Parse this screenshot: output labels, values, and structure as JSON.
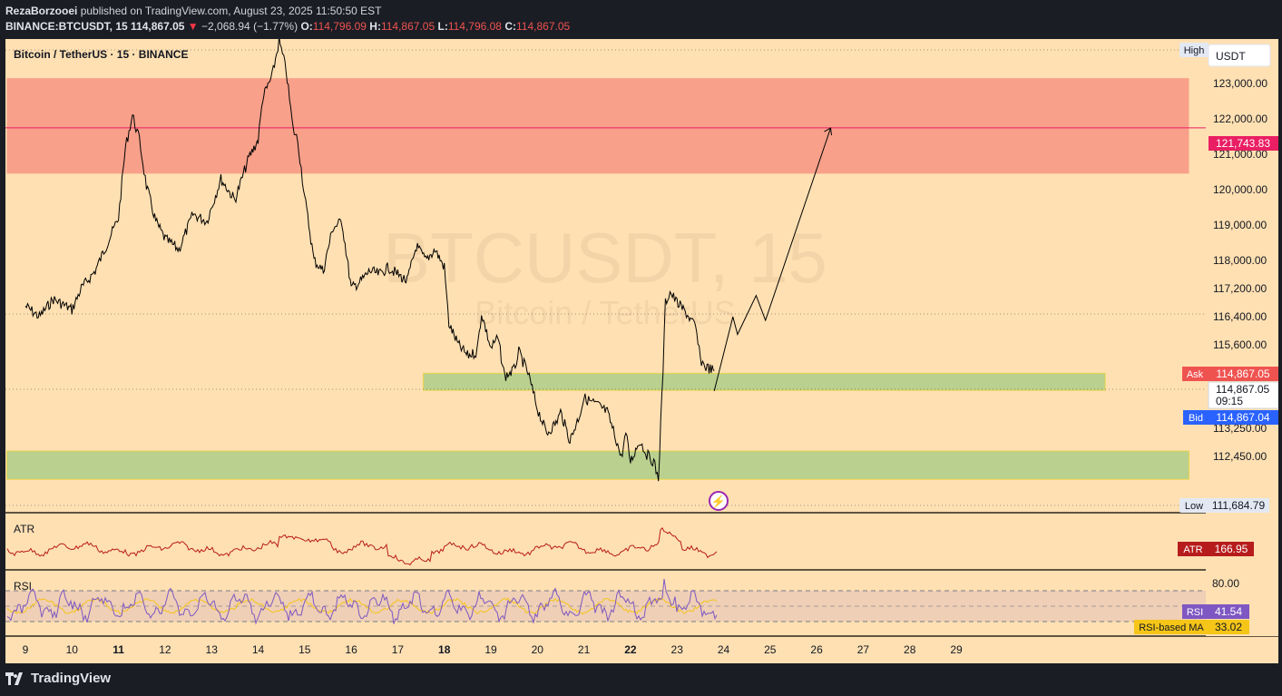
{
  "header": {
    "author": "RezaBorzooei",
    "published_text": "published on TradingView.com, August 23, 2025 11:50:50 EST",
    "symbol_line": {
      "symbol": "BINANCE:BTCUSDT, 15",
      "price": "114,867.05",
      "change_arrow": "▼",
      "change": "−2,068.94 (−1.77%)",
      "o_label": "O:",
      "o_value": "114,796.09",
      "h_label": "H:",
      "h_value": "114,867.05",
      "l_label": "L:",
      "l_value": "114,796.08",
      "c_label": "C:",
      "c_value": "114,867.05"
    }
  },
  "chart_title": "Bitcoin / TetherUS · 15 · BINANCE",
  "watermark": {
    "main": "BTCUSDT, 15",
    "sub": "Bitcoin / TetherUS"
  },
  "currency_button": "USDT",
  "price_tags": {
    "high_label": "High",
    "low_label": "Low",
    "low_value": "111,684.79",
    "target_value": "121,743.83",
    "ask_label": "Ask",
    "ask_value": "114,867.05",
    "last_value": "114,867.05",
    "countdown": "09:15",
    "bid_label": "Bid",
    "bid_value": "114,867.04"
  },
  "indicators": {
    "atr": {
      "label": "ATR",
      "tag_label": "ATR",
      "value": "166.95"
    },
    "rsi": {
      "label": "RSI",
      "tag_label": "RSI",
      "value": "41.54",
      "ma_label": "RSI-based MA",
      "ma_value": "33.02",
      "level_label": "80.00"
    }
  },
  "footer": {
    "brand": "TradingView"
  },
  "colors": {
    "background": "#ffe0b2",
    "supply_zone": "#f8a08a",
    "demand_zone": "#b9d08f",
    "price_line": "#000000",
    "atr_line": "#b71c1c",
    "rsi_line": "#7e57c2",
    "rsi_ma_line": "#f5c518",
    "target_tag": "#e91e63",
    "ask_tag": "#ef5350",
    "bid_tag": "#2962ff"
  },
  "chart_data": {
    "type": "line",
    "title": "Bitcoin / TetherUS · 15 · BINANCE",
    "xlabel": "",
    "ylabel": "",
    "x_ticks": [
      "9",
      "10",
      "11",
      "12",
      "13",
      "14",
      "15",
      "16",
      "17",
      "18",
      "19",
      "20",
      "21",
      "22",
      "23",
      "24",
      "25",
      "26",
      "27",
      "28",
      "29"
    ],
    "y_ticks": [
      "123,000.00",
      "122,000.00",
      "121,000.00",
      "120,000.00",
      "119,000.00",
      "118,000.00",
      "117,200.00",
      "116,400.00",
      "115,600.00",
      "113,250.00",
      "112,450.00"
    ],
    "ylim": [
      111400,
      124300
    ],
    "grid": false,
    "series": [
      {
        "x": [
          9.0,
          9.3,
          9.6,
          10.0,
          10.2,
          10.5,
          10.8,
          11.0,
          11.15,
          11.3,
          11.45,
          11.6,
          11.8,
          12.0,
          12.3,
          12.6,
          12.9,
          13.2,
          13.5,
          13.8,
          14.0,
          14.1,
          14.3,
          14.45,
          14.6,
          14.75,
          14.85,
          15.0,
          15.2,
          15.4,
          15.6,
          15.8,
          16.0,
          16.2,
          16.4,
          16.6,
          16.8,
          17.0,
          17.2,
          17.4,
          17.6,
          17.8,
          18.0,
          18.1,
          18.3,
          18.5,
          18.7,
          18.8,
          19.0,
          19.15,
          19.3,
          19.5,
          19.6,
          19.8,
          20.0,
          20.2,
          20.4,
          20.5,
          20.7,
          20.9,
          21.0,
          21.15,
          21.3,
          21.5,
          21.7,
          21.8,
          21.9,
          22.0,
          22.2,
          22.35,
          22.5,
          22.6,
          22.7,
          22.75,
          22.85,
          23.0,
          23.2,
          23.4,
          23.5,
          23.6,
          23.8
        ],
        "y": [
          116700,
          116400,
          116900,
          116600,
          117200,
          117700,
          118600,
          119200,
          121200,
          122100,
          121400,
          120100,
          119100,
          118600,
          118300,
          119300,
          119100,
          120300,
          119700,
          120900,
          121400,
          122600,
          123200,
          124200,
          123400,
          121700,
          121400,
          119800,
          118000,
          117700,
          118900,
          119100,
          117200,
          117400,
          117700,
          117600,
          117800,
          117600,
          117400,
          118400,
          118000,
          118300,
          117800,
          116200,
          115600,
          115300,
          115400,
          116500,
          115500,
          115800,
          114700,
          114900,
          115400,
          114800,
          113800,
          113100,
          113400,
          113700,
          112900,
          113600,
          114100,
          114000,
          113900,
          113700,
          112900,
          112400,
          113100,
          112300,
          112900,
          112500,
          112300,
          111800,
          114900,
          116800,
          117100,
          116800,
          116500,
          116100,
          115200,
          115000,
          114867
        ]
      },
      {
        "name": "projection",
        "x": [
          23.8,
          24.2,
          24.3,
          24.7,
          24.9,
          26.3
        ],
        "y": [
          114300,
          116400,
          115900,
          117000,
          116300,
          121740
        ]
      }
    ],
    "zones": [
      {
        "type": "supply",
        "y_low": 120450,
        "y_high": 123150,
        "x_start": 8.6,
        "x_end": 34
      },
      {
        "type": "demand",
        "y_low": 114320,
        "y_high": 114800,
        "x_start": 17.55,
        "x_end": 32.2
      },
      {
        "type": "demand",
        "y_low": 111800,
        "y_high": 112600,
        "x_start": 8.6,
        "x_end": 34
      }
    ],
    "target_line": 121743.83,
    "high": 124200,
    "low": 111684.79,
    "atr": {
      "label": "ATR",
      "value": 166.95
    },
    "rsi": {
      "label": "RSI",
      "value": 41.54,
      "ma": 33.02,
      "levels": [
        80,
        50,
        20
      ]
    }
  }
}
